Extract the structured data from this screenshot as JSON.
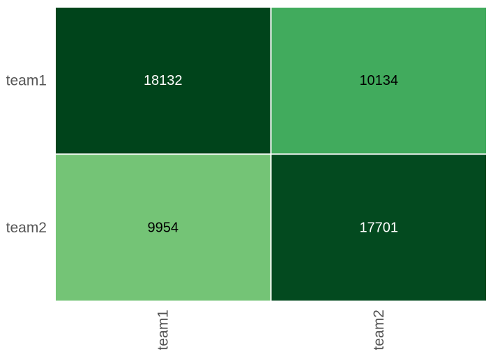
{
  "chart_data": {
    "type": "heatmap",
    "title": "",
    "xlabel": "",
    "ylabel": "",
    "x_categories": [
      "team1",
      "team2"
    ],
    "y_categories": [
      "team1",
      "team2"
    ],
    "values": [
      [
        18132,
        10134
      ],
      [
        9954,
        17701
      ]
    ],
    "value_labels": [
      [
        "18132",
        "10134"
      ],
      [
        "9954",
        "17701"
      ]
    ],
    "colormap": "greens",
    "value_range": [
      9954,
      18132
    ],
    "colorbar": false,
    "grid": false,
    "colors": {
      "low": "#74c476",
      "mid": "#41ab5d",
      "high": "#00441b",
      "text_on_dark": "#ffffff",
      "text_on_light": "#000000",
      "tick_label": "#555555",
      "cell_border": "#ffffff"
    }
  }
}
